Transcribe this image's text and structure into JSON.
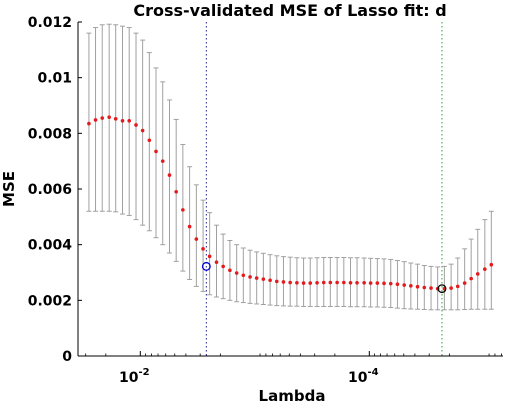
{
  "chart_data": {
    "type": "scatter",
    "title": "Cross-validated MSE of Lasso fit: d",
    "xlabel": "Lambda",
    "ylabel": "MSE",
    "x_scale": "log",
    "x_reversed": true,
    "xlim": [
      0.035,
      6.8e-06
    ],
    "ylim": [
      0,
      0.012
    ],
    "yticks": [
      {
        "value": 0,
        "label": "0"
      },
      {
        "value": 0.002,
        "label": "0.002"
      },
      {
        "value": 0.004,
        "label": "0.004"
      },
      {
        "value": 0.006,
        "label": "0.006"
      },
      {
        "value": 0.008,
        "label": "0.008"
      },
      {
        "value": 0.01,
        "label": "0.01"
      },
      {
        "value": 0.012,
        "label": "0.012"
      }
    ],
    "xticks": [
      {
        "value": 0.01,
        "label_base": "10",
        "label_exp": "-2"
      },
      {
        "value": 0.0001,
        "label_base": "10",
        "label_exp": "-4"
      }
    ],
    "grid": false,
    "legend": "none",
    "colors": {
      "points": "#e41a1c",
      "errorbars": "#a0a0a0",
      "min_mse_line": "#2ca02c",
      "one_se_line": "#1f1f8f",
      "one_se_marker": "#0000cc",
      "min_mse_marker": "#000000"
    },
    "markers": [
      {
        "role": "one_se",
        "lambda": 0.00265,
        "mse": 0.00322
      },
      {
        "role": "min_mse",
        "lambda": 2.32e-05,
        "mse": 0.00242
      }
    ],
    "reference_lines": [
      {
        "role": "one_se",
        "lambda": 0.00265
      },
      {
        "role": "min_mse",
        "lambda": 2.32e-05
      }
    ],
    "series": [
      {
        "lambda": [
          0.0281,
          0.0246,
          0.0215,
          0.0187,
          0.0164,
          0.0143,
          0.0125,
          0.0109,
          0.00954,
          0.00834,
          0.00729,
          0.00637,
          0.00556,
          0.00486,
          0.00425,
          0.00371,
          0.00324,
          0.00283,
          0.00248,
          0.00216,
          0.00189,
          0.00165,
          0.00144,
          0.00126,
          0.0011,
          0.000963,
          0.000842,
          0.000735,
          0.000643,
          0.000562,
          0.000491,
          0.000429,
          0.000375,
          0.000328,
          0.000286,
          0.00025,
          0.000219,
          0.000191,
          0.000167,
          0.000146,
          0.000128,
          0.000111,
          9.74e-05,
          8.51e-05,
          7.44e-05,
          6.5e-05,
          5.68e-05,
          4.96e-05,
          4.34e-05,
          3.79e-05,
          3.31e-05,
          2.89e-05,
          2.53e-05,
          2.21e-05,
          1.93e-05,
          1.69e-05,
          1.47e-05,
          1.29e-05,
          1.13e-05,
          9.8e-06,
          8.6e-06
        ],
        "mse": [
          0.00835,
          0.00848,
          0.00855,
          0.00858,
          0.00852,
          0.00845,
          0.00845,
          0.0083,
          0.0081,
          0.00775,
          0.00735,
          0.007,
          0.0065,
          0.0059,
          0.00525,
          0.00465,
          0.0042,
          0.00385,
          0.00358,
          0.00337,
          0.00322,
          0.00308,
          0.00298,
          0.0029,
          0.00284,
          0.0028,
          0.00276,
          0.00272,
          0.00268,
          0.00266,
          0.00264,
          0.00263,
          0.00262,
          0.00262,
          0.00263,
          0.00264,
          0.00264,
          0.00264,
          0.00264,
          0.00263,
          0.00263,
          0.00263,
          0.00262,
          0.00262,
          0.00261,
          0.0026,
          0.00258,
          0.00255,
          0.00252,
          0.00249,
          0.00246,
          0.00244,
          0.00242,
          0.00242,
          0.00244,
          0.0025,
          0.00262,
          0.00278,
          0.00295,
          0.00312,
          0.00328
        ],
        "err_high": [
          0.0116,
          0.0118,
          0.0119,
          0.01192,
          0.0119,
          0.01185,
          0.0118,
          0.0116,
          0.01135,
          0.0109,
          0.01035,
          0.00985,
          0.0092,
          0.0085,
          0.0076,
          0.0068,
          0.00615,
          0.0056,
          0.00515,
          0.0047,
          0.00438,
          0.00415,
          0.004,
          0.00388,
          0.0038,
          0.00374,
          0.00369,
          0.00364,
          0.0036,
          0.00357,
          0.00355,
          0.00353,
          0.00352,
          0.00352,
          0.00353,
          0.00354,
          0.00354,
          0.00354,
          0.00354,
          0.00353,
          0.00353,
          0.00352,
          0.00351,
          0.0035,
          0.00349,
          0.00347,
          0.00343,
          0.00339,
          0.00334,
          0.0033,
          0.00325,
          0.00322,
          0.0032,
          0.00322,
          0.0033,
          0.00352,
          0.00385,
          0.0042,
          0.00455,
          0.0049,
          0.0052
        ],
        "err_low": [
          0.0052,
          0.0052,
          0.0052,
          0.0052,
          0.00518,
          0.0051,
          0.00505,
          0.0049,
          0.0047,
          0.0045,
          0.00425,
          0.004,
          0.0037,
          0.0034,
          0.00305,
          0.00275,
          0.0025,
          0.00232,
          0.0022,
          0.00212,
          0.00206,
          0.002,
          0.00195,
          0.00192,
          0.00189,
          0.00187,
          0.00185,
          0.00183,
          0.00181,
          0.0018,
          0.00179,
          0.00179,
          0.00178,
          0.00178,
          0.00178,
          0.00178,
          0.00178,
          0.00178,
          0.00178,
          0.00177,
          0.00177,
          0.00177,
          0.00176,
          0.00176,
          0.00175,
          0.00174,
          0.00172,
          0.0017,
          0.00169,
          0.00168,
          0.00167,
          0.00166,
          0.00166,
          0.00166,
          0.00166,
          0.00166,
          0.00167,
          0.00168,
          0.00168,
          0.00168,
          0.00168
        ]
      }
    ]
  }
}
